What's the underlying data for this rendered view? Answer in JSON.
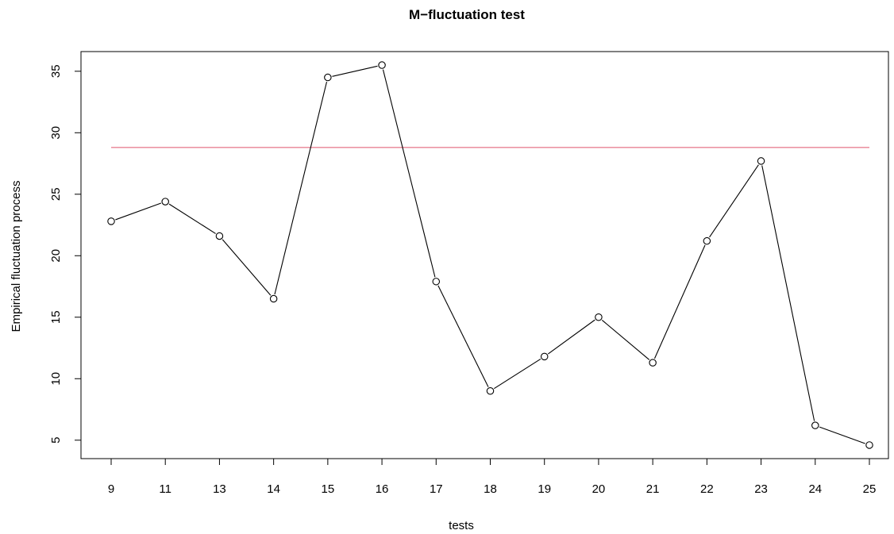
{
  "chart_data": {
    "type": "line",
    "title": "M−fluctuation test",
    "xlabel": "tests",
    "ylabel": "Empirical fluctuation process",
    "x": [
      9,
      11,
      13,
      14,
      15,
      16,
      17,
      18,
      19,
      20,
      21,
      22,
      23,
      24,
      25
    ],
    "x_tick_labels": [
      "9",
      "11",
      "13",
      "14",
      "15",
      "16",
      "17",
      "18",
      "19",
      "20",
      "21",
      "22",
      "23",
      "24",
      "25"
    ],
    "series": [
      {
        "values": [
          22.8,
          24.4,
          21.6,
          16.5,
          34.5,
          35.5,
          17.9,
          9.0,
          11.8,
          15.0,
          11.3,
          21.2,
          27.7,
          6.2,
          4.6
        ],
        "color": "#000000",
        "marker": "open-circle"
      }
    ],
    "critical_value": 28.8,
    "critical_line_color": "#DF536B",
    "y_ticks": [
      5,
      10,
      15,
      20,
      25,
      30,
      35
    ],
    "ylim": [
      3.5,
      36.6
    ],
    "grid": false,
    "legend": "none"
  }
}
